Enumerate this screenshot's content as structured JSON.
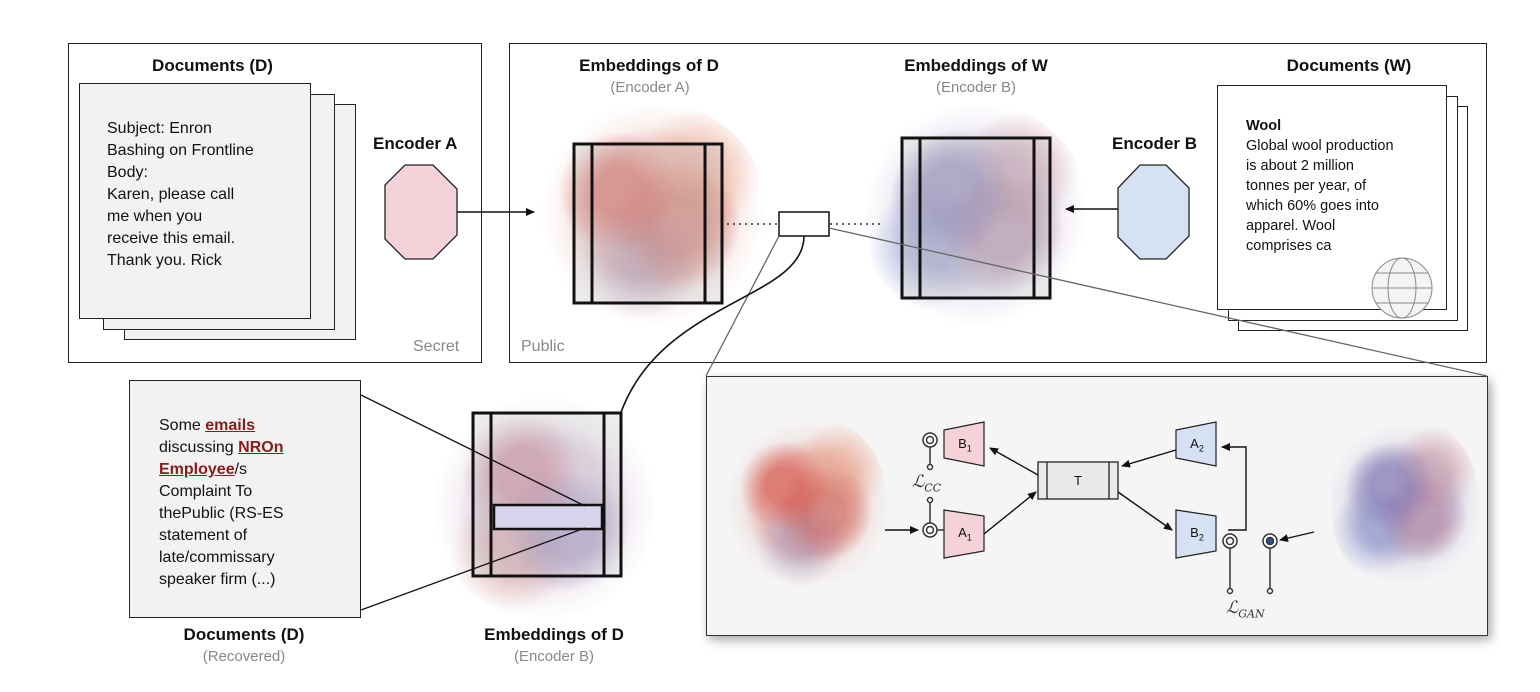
{
  "top_left_panel": {
    "title": "Documents (D)",
    "doc_text": [
      "Subject: Enron",
      "Bashing on Frontline",
      "Body:",
      "Karen, please call",
      "me when you",
      "receive this email.",
      "Thank you. Rick"
    ],
    "encoder_label": "Encoder A",
    "corner_label": "Secret"
  },
  "top_right_panel": {
    "emb_d_title": "Embeddings of D",
    "emb_d_sub": "(Encoder A)",
    "emb_w_title": "Embeddings of W",
    "emb_w_sub": "(Encoder B)",
    "encoder_label": "Encoder B",
    "docs_w_title": "Documents (W)",
    "doc_w_heading": "Wool",
    "doc_w_text": [
      "Global wool production",
      "is about 2 million",
      "tonnes per year, of",
      "which 60% goes into",
      "apparel. Wool",
      "comprises ca"
    ],
    "corner_label": "Public"
  },
  "recovered": {
    "text_before": "Some ",
    "hl_emails": "emails",
    "line2": "discussing ",
    "hl_nron": "NROn",
    "hl_employee": "Employee",
    "employee_suffix": "/s",
    "rest": [
      "Complaint To",
      "thePublic (RS-ES",
      "statement of",
      "late/commissary",
      "speaker firm (...)"
    ],
    "title": "Documents (D)",
    "sub": "(Recovered)"
  },
  "bottom_emb": {
    "title": "Embeddings of D",
    "sub": "(Encoder B)"
  },
  "detail": {
    "b1": "B",
    "b1_sub": "1",
    "a1": "A",
    "a1_sub": "1",
    "a2": "A",
    "a2_sub": "2",
    "b2": "B",
    "b2_sub": "2",
    "t": "T",
    "loss_cc": "ℒ",
    "loss_cc_sub": "CC",
    "loss_gan": "ℒ",
    "loss_gan_sub": "GAN"
  },
  "colors": {
    "encoder_a": "#f3d3d9",
    "encoder_b": "#d6e1f3",
    "highlight": "#8b1a1a",
    "recovered_bar": "#d9d3ee"
  }
}
